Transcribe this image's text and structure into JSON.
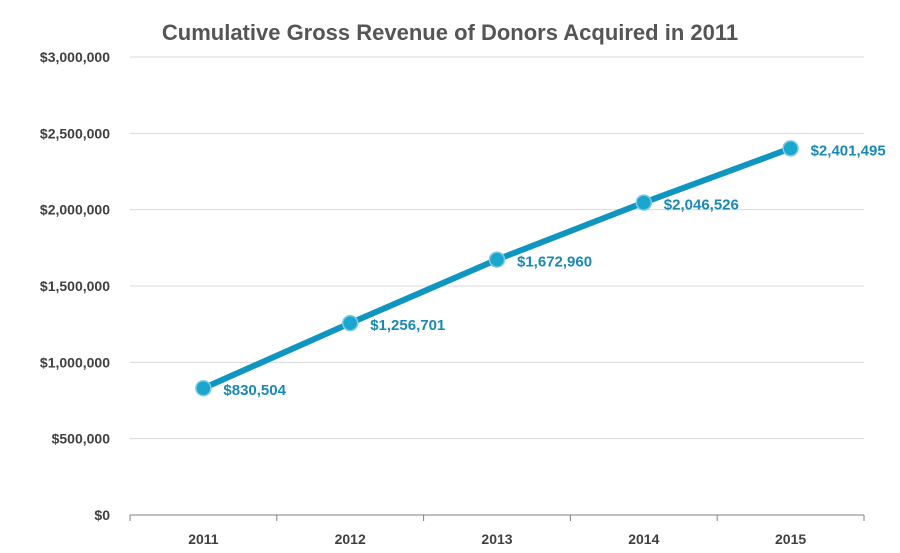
{
  "chart_data": {
    "type": "line",
    "title": "Cumulative Gross Revenue of Donors Acquired in 2011",
    "xlabel": "",
    "ylabel": "",
    "categories": [
      "2011",
      "2012",
      "2013",
      "2014",
      "2015"
    ],
    "series": [
      {
        "name": "Cumulative Gross Revenue",
        "values": [
          830504,
          1256701,
          1672960,
          2046526,
          2401495
        ],
        "labels": [
          "$830,504",
          "$1,256,701",
          "$1,672,960",
          "$2,046,526",
          "$2,401,495"
        ]
      }
    ],
    "ylim": [
      0,
      3000000
    ],
    "yticks": [
      0,
      500000,
      1000000,
      1500000,
      2000000,
      2500000,
      3000000
    ],
    "ytick_labels": [
      "$0",
      "$500,000",
      "$1,000,000",
      "$1,500,000",
      "$2,000,000",
      "$2,500,000",
      "$3,000,000"
    ],
    "grid": true,
    "legend": "none"
  },
  "colors": {
    "line": "#0e96c0",
    "marker": "#1ba6d0",
    "label": "#1a88b4",
    "grid": "#d9d9d9",
    "axis": "#808080"
  }
}
